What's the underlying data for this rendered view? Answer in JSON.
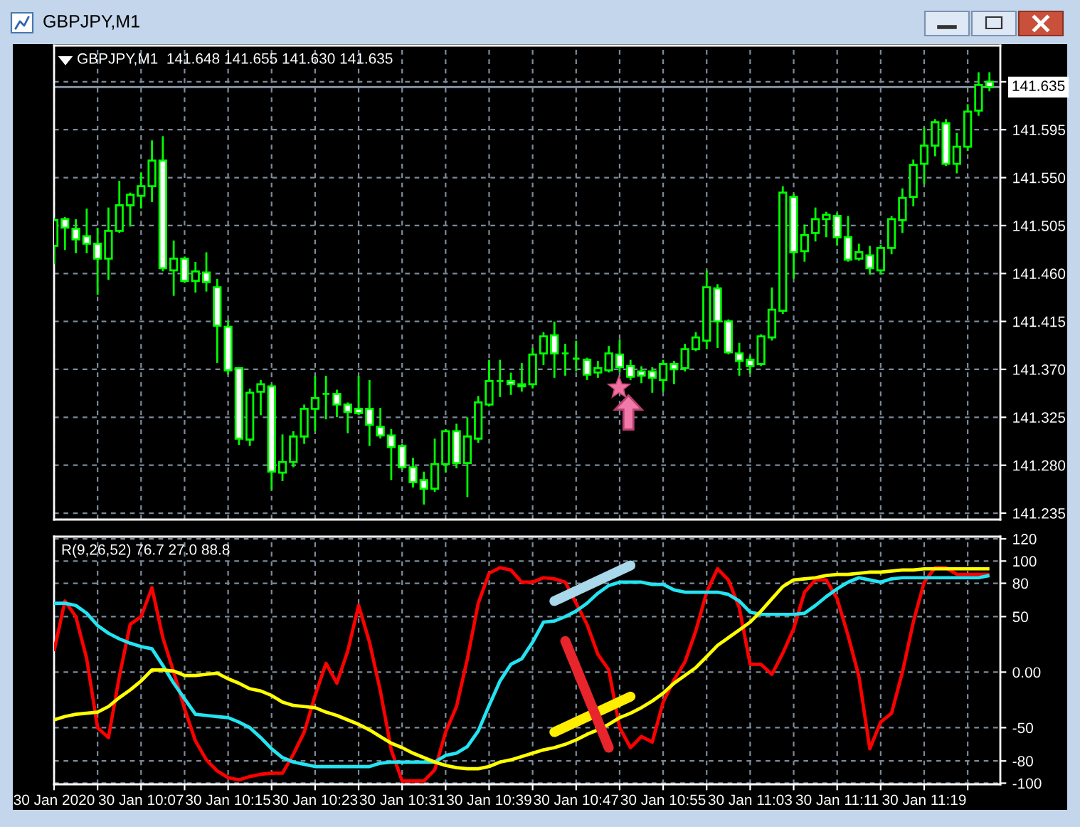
{
  "chart_data": [
    {
      "type": "candlestick",
      "title": "GBPJPY,M1",
      "subtitle": "GBPJPY,M1  141.648 141.655 141.630 141.635",
      "x": [
        "2020-01-30T09:59",
        "2020-01-30T10:00",
        "2020-01-30T10:01",
        "2020-01-30T10:02",
        "2020-01-30T10:03",
        "2020-01-30T10:04",
        "2020-01-30T10:05",
        "2020-01-30T10:06",
        "2020-01-30T10:07",
        "2020-01-30T10:08",
        "2020-01-30T10:09",
        "2020-01-30T10:10",
        "2020-01-30T10:11",
        "2020-01-30T10:12",
        "2020-01-30T10:13",
        "2020-01-30T10:14",
        "2020-01-30T10:15",
        "2020-01-30T10:16",
        "2020-01-30T10:17",
        "2020-01-30T10:18",
        "2020-01-30T10:19",
        "2020-01-30T10:20",
        "2020-01-30T10:21",
        "2020-01-30T10:22",
        "2020-01-30T10:23",
        "2020-01-30T10:24",
        "2020-01-30T10:25",
        "2020-01-30T10:26",
        "2020-01-30T10:27",
        "2020-01-30T10:28",
        "2020-01-30T10:29",
        "2020-01-30T10:30",
        "2020-01-30T10:31",
        "2020-01-30T10:32",
        "2020-01-30T10:33",
        "2020-01-30T10:34",
        "2020-01-30T10:35",
        "2020-01-30T10:36",
        "2020-01-30T10:37",
        "2020-01-30T10:38",
        "2020-01-30T10:39",
        "2020-01-30T10:40",
        "2020-01-30T10:41",
        "2020-01-30T10:42",
        "2020-01-30T10:43",
        "2020-01-30T10:44",
        "2020-01-30T10:45",
        "2020-01-30T10:46",
        "2020-01-30T10:47",
        "2020-01-30T10:48",
        "2020-01-30T10:49",
        "2020-01-30T10:50",
        "2020-01-30T10:51",
        "2020-01-30T10:52",
        "2020-01-30T10:53",
        "2020-01-30T10:54",
        "2020-01-30T10:55",
        "2020-01-30T10:56",
        "2020-01-30T10:57",
        "2020-01-30T10:58",
        "2020-01-30T10:59",
        "2020-01-30T11:00",
        "2020-01-30T11:01",
        "2020-01-30T11:02",
        "2020-01-30T11:03",
        "2020-01-30T11:04",
        "2020-01-30T11:05",
        "2020-01-30T11:06",
        "2020-01-30T11:07",
        "2020-01-30T11:08",
        "2020-01-30T11:09",
        "2020-01-30T11:10",
        "2020-01-30T11:11",
        "2020-01-30T11:12",
        "2020-01-30T11:13",
        "2020-01-30T11:14",
        "2020-01-30T11:15",
        "2020-01-30T11:16",
        "2020-01-30T11:17",
        "2020-01-30T11:18",
        "2020-01-30T11:19",
        "2020-01-30T11:20",
        "2020-01-30T11:21",
        "2020-01-30T11:22",
        "2020-01-30T11:23",
        "2020-01-30T11:24",
        "2020-01-30T11:25"
      ],
      "ohlc": [
        [
          141.486,
          141.511,
          141.47,
          141.51
        ],
        [
          141.511,
          141.512,
          141.483,
          141.503
        ],
        [
          141.502,
          141.51,
          141.48,
          141.492
        ],
        [
          141.495,
          141.52,
          141.48,
          141.488
        ],
        [
          141.488,
          141.502,
          141.441,
          141.474
        ],
        [
          141.474,
          141.521,
          141.455,
          141.5
        ],
        [
          141.5,
          141.546,
          141.499,
          141.524
        ],
        [
          141.524,
          141.535,
          141.505,
          141.534
        ],
        [
          141.533,
          141.554,
          141.522,
          141.542
        ],
        [
          141.542,
          141.584,
          141.528,
          141.566
        ],
        [
          141.566,
          141.588,
          141.463,
          141.465
        ],
        [
          141.463,
          141.49,
          141.44,
          141.474
        ],
        [
          141.474,
          141.475,
          141.452,
          141.453
        ],
        [
          141.453,
          141.47,
          141.443,
          141.462
        ],
        [
          141.461,
          141.479,
          141.444,
          141.452
        ],
        [
          141.447,
          141.454,
          141.377,
          141.411
        ],
        [
          141.41,
          141.415,
          141.366,
          141.369
        ],
        [
          141.371,
          141.371,
          141.3,
          141.305
        ],
        [
          141.304,
          141.351,
          141.299,
          141.348
        ],
        [
          141.349,
          141.359,
          141.328,
          141.356
        ],
        [
          141.354,
          141.355,
          141.258,
          141.274
        ],
        [
          141.273,
          141.308,
          141.266,
          141.283
        ],
        [
          141.283,
          141.311,
          141.279,
          141.307
        ],
        [
          141.307,
          141.336,
          141.301,
          141.333
        ],
        [
          141.333,
          141.363,
          141.313,
          141.343
        ],
        [
          141.347,
          141.363,
          141.324,
          141.347
        ],
        [
          141.347,
          141.35,
          141.326,
          141.337
        ],
        [
          141.337,
          141.338,
          141.311,
          141.33
        ],
        [
          141.333,
          141.363,
          141.328,
          141.329
        ],
        [
          141.333,
          141.359,
          141.299,
          141.318
        ],
        [
          141.316,
          141.333,
          141.306,
          141.308
        ],
        [
          141.308,
          141.313,
          141.267,
          141.297
        ],
        [
          141.298,
          141.299,
          141.277,
          141.278
        ],
        [
          141.278,
          141.286,
          141.26,
          141.264
        ],
        [
          141.266,
          141.273,
          141.244,
          141.258
        ],
        [
          141.258,
          141.304,
          141.256,
          141.281
        ],
        [
          141.281,
          141.313,
          141.274,
          141.312
        ],
        [
          141.312,
          141.318,
          141.278,
          141.282
        ],
        [
          141.282,
          141.324,
          141.251,
          141.307
        ],
        [
          141.305,
          141.344,
          141.302,
          141.339
        ],
        [
          141.337,
          141.378,
          141.336,
          141.359
        ],
        [
          141.359,
          141.378,
          141.345,
          141.359
        ],
        [
          141.359,
          141.366,
          141.347,
          141.356
        ],
        [
          141.356,
          141.375,
          141.35,
          141.354
        ],
        [
          141.356,
          141.389,
          141.353,
          141.384
        ],
        [
          141.385,
          141.404,
          141.375,
          141.401
        ],
        [
          141.402,
          141.414,
          141.363,
          141.385
        ],
        [
          141.385,
          141.393,
          141.365,
          141.385
        ],
        [
          141.38,
          141.396,
          141.369,
          141.38
        ],
        [
          141.379,
          141.38,
          141.361,
          141.365
        ],
        [
          141.367,
          141.377,
          141.363,
          141.371
        ],
        [
          141.369,
          141.391,
          141.368,
          141.385
        ],
        [
          141.384,
          141.397,
          141.368,
          141.372
        ],
        [
          141.373,
          141.378,
          141.361,
          141.363
        ],
        [
          141.368,
          141.372,
          141.358,
          141.364
        ],
        [
          141.368,
          141.371,
          141.349,
          141.362
        ],
        [
          141.36,
          141.378,
          141.35,
          141.375
        ],
        [
          141.375,
          141.377,
          141.357,
          141.37
        ],
        [
          141.371,
          141.393,
          141.369,
          141.389
        ],
        [
          141.389,
          141.404,
          141.388,
          141.4
        ],
        [
          141.397,
          141.462,
          141.39,
          141.447
        ],
        [
          141.446,
          141.449,
          141.391,
          141.415
        ],
        [
          141.415,
          141.416,
          141.385,
          141.386
        ],
        [
          141.385,
          141.394,
          141.365,
          141.378
        ],
        [
          141.379,
          141.382,
          141.367,
          141.373
        ],
        [
          141.375,
          141.402,
          141.374,
          141.401
        ],
        [
          141.4,
          141.446,
          141.398,
          141.426
        ],
        [
          141.425,
          141.541,
          141.423,
          141.536
        ],
        [
          141.532,
          141.534,
          141.456,
          141.48
        ],
        [
          141.481,
          141.505,
          141.472,
          141.496
        ],
        [
          141.498,
          141.521,
          141.491,
          141.511
        ],
        [
          141.511,
          141.517,
          141.495,
          141.515
        ],
        [
          141.514,
          141.516,
          141.487,
          141.494
        ],
        [
          141.494,
          141.513,
          141.472,
          141.473
        ],
        [
          141.474,
          141.487,
          141.473,
          141.48
        ],
        [
          141.477,
          141.485,
          141.46,
          141.465
        ],
        [
          141.463,
          141.486,
          141.46,
          141.484
        ],
        [
          141.484,
          141.513,
          141.479,
          141.511
        ],
        [
          141.51,
          141.539,
          141.499,
          141.531
        ],
        [
          141.532,
          141.566,
          141.524,
          141.562
        ],
        [
          141.563,
          141.596,
          141.545,
          141.58
        ],
        [
          141.58,
          141.604,
          141.571,
          141.602
        ],
        [
          141.601,
          141.604,
          141.562,
          141.563
        ],
        [
          141.563,
          141.591,
          141.555,
          141.579
        ],
        [
          141.579,
          141.618,
          141.576,
          141.612
        ],
        [
          141.613,
          141.648,
          141.609,
          141.637
        ],
        [
          141.64,
          141.648,
          141.632,
          141.635
        ]
      ],
      "color": "#00ff00",
      "colors": [
        "#000000",
        "#ffffff",
        "#ffffff",
        "#ffffff",
        "#ffffff",
        "#000000",
        "#000000",
        "#000000",
        "#000000",
        "#000000",
        "#ffffff",
        "#000000",
        "#ffffff",
        "#000000",
        "#ffffff",
        "#ffffff",
        "#ffffff",
        "#ffffff",
        "#000000",
        "#000000",
        "#ffffff",
        "#000000",
        "#000000",
        "#000000",
        "#000000",
        "#00ff00",
        "#ffffff",
        "#ffffff",
        "#ffffff",
        "#ffffff",
        "#ffffff",
        "#ffffff",
        "#ffffff",
        "#ffffff",
        "#ffffff",
        "#000000",
        "#000000",
        "#ffffff",
        "#000000",
        "#000000",
        "#000000",
        "#00ff00",
        "#ffffff",
        "#ffffff",
        "#000000",
        "#000000",
        "#ffffff",
        "#00ff00",
        "#00ff00",
        "#ffffff",
        "#000000",
        "#000000",
        "#ffffff",
        "#ffffff",
        "#ffffff",
        "#ffffff",
        "#000000",
        "#ffffff",
        "#000000",
        "#000000",
        "#000000",
        "#ffffff",
        "#ffffff",
        "#ffffff",
        "#ffffff",
        "#000000",
        "#000000",
        "#000000",
        "#ffffff",
        "#000000",
        "#000000",
        "#000000",
        "#ffffff",
        "#ffffff",
        "#000000",
        "#ffffff",
        "#000000",
        "#000000",
        "#000000",
        "#000000",
        "#000000",
        "#000000",
        "#ffffff",
        "#000000",
        "#000000",
        "#000000",
        "#ffffff"
      ],
      "xlim": [
        "2020-01-30T09:59",
        "2020-01-30T11:26"
      ],
      "xticks": [
        {
          "value": "2020-01-30T09:59",
          "label": null
        },
        {
          "value": "2020-01-30T10:03",
          "label": null
        },
        {
          "value": "2020-01-30T10:07",
          "label": null
        },
        {
          "value": "2020-01-30T10:11",
          "label": null
        },
        {
          "value": "2020-01-30T10:15",
          "label": null
        },
        {
          "value": "2020-01-30T10:19",
          "label": null
        },
        {
          "value": "2020-01-30T10:23",
          "label": null
        },
        {
          "value": "2020-01-30T10:27",
          "label": null
        },
        {
          "value": "2020-01-30T10:31",
          "label": null
        },
        {
          "value": "2020-01-30T10:35",
          "label": null
        },
        {
          "value": "2020-01-30T10:39",
          "label": null
        },
        {
          "value": "2020-01-30T10:43",
          "label": null
        },
        {
          "value": "2020-01-30T10:47",
          "label": null
        },
        {
          "value": "2020-01-30T10:51",
          "label": null
        },
        {
          "value": "2020-01-30T10:55",
          "label": null
        },
        {
          "value": "2020-01-30T10:59",
          "label": null
        },
        {
          "value": "2020-01-30T11:03",
          "label": null
        },
        {
          "value": "2020-01-30T11:07",
          "label": null
        },
        {
          "value": "2020-01-30T11:11",
          "label": null
        },
        {
          "value": "2020-01-30T11:15",
          "label": null
        },
        {
          "value": "2020-01-30T11:19",
          "label": null
        },
        {
          "value": "2020-01-30T11:23",
          "label": null
        }
      ],
      "ylim": [
        141.229,
        141.674
      ],
      "yticks": [
        141.235,
        {
          "value": 141.28,
          "label": "141.280"
        },
        141.325,
        {
          "value": 141.37,
          "label": "141.370"
        },
        141.415,
        {
          "value": 141.46,
          "label": "141.460"
        },
        141.505,
        {
          "value": 141.55,
          "label": "141.550"
        },
        141.595,
        {
          "value": 141.64,
          "label": null
        }
      ],
      "tick_labels": "y",
      "grid": true,
      "ref_lines": [
        {
          "axis": "y",
          "value": 141.635,
          "label": "141.635",
          "color": "#8796a8"
        }
      ]
    },
    {
      "type": "line",
      "title": "R(9,26,52) 76.7 27.0 88.8",
      "x": [
        "2020-01-30T09:59",
        "2020-01-30T10:00",
        "2020-01-30T10:01",
        "2020-01-30T10:02",
        "2020-01-30T10:03",
        "2020-01-30T10:04",
        "2020-01-30T10:05",
        "2020-01-30T10:06",
        "2020-01-30T10:07",
        "2020-01-30T10:08",
        "2020-01-30T10:09",
        "2020-01-30T10:10",
        "2020-01-30T10:11",
        "2020-01-30T10:12",
        "2020-01-30T10:13",
        "2020-01-30T10:14",
        "2020-01-30T10:15",
        "2020-01-30T10:16",
        "2020-01-30T10:17",
        "2020-01-30T10:18",
        "2020-01-30T10:19",
        "2020-01-30T10:20",
        "2020-01-30T10:21",
        "2020-01-30T10:22",
        "2020-01-30T10:23",
        "2020-01-30T10:24",
        "2020-01-30T10:25",
        "2020-01-30T10:26",
        "2020-01-30T10:27",
        "2020-01-30T10:28",
        "2020-01-30T10:29",
        "2020-01-30T10:30",
        "2020-01-30T10:31",
        "2020-01-30T10:32",
        "2020-01-30T10:33",
        "2020-01-30T10:34",
        "2020-01-30T10:35",
        "2020-01-30T10:36",
        "2020-01-30T10:37",
        "2020-01-30T10:38",
        "2020-01-30T10:39",
        "2020-01-30T10:40",
        "2020-01-30T10:41",
        "2020-01-30T10:42",
        "2020-01-30T10:43",
        "2020-01-30T10:44",
        "2020-01-30T10:45",
        "2020-01-30T10:46",
        "2020-01-30T10:47",
        "2020-01-30T10:48",
        "2020-01-30T10:49",
        "2020-01-30T10:50",
        "2020-01-30T10:51",
        "2020-01-30T10:52",
        "2020-01-30T10:53",
        "2020-01-30T10:54",
        "2020-01-30T10:55",
        "2020-01-30T10:56",
        "2020-01-30T10:57",
        "2020-01-30T10:58",
        "2020-01-30T10:59",
        "2020-01-30T11:00",
        "2020-01-30T11:01",
        "2020-01-30T11:02",
        "2020-01-30T11:03",
        "2020-01-30T11:04",
        "2020-01-30T11:05",
        "2020-01-30T11:06",
        "2020-01-30T11:07",
        "2020-01-30T11:08",
        "2020-01-30T11:09",
        "2020-01-30T11:10",
        "2020-01-30T11:11",
        "2020-01-30T11:12",
        "2020-01-30T11:13",
        "2020-01-30T11:14",
        "2020-01-30T11:15",
        "2020-01-30T11:16",
        "2020-01-30T11:17",
        "2020-01-30T11:18",
        "2020-01-30T11:19",
        "2020-01-30T11:20",
        "2020-01-30T11:21",
        "2020-01-30T11:22",
        "2020-01-30T11:23",
        "2020-01-30T11:24",
        "2020-01-30T11:25"
      ],
      "series": [
        {
          "color": "#ff0000",
          "values": [
            19,
            64,
            50,
            12,
            -50,
            -59,
            -4,
            43,
            50,
            76,
            31,
            0,
            -33,
            -62,
            -79,
            -89,
            -95,
            -97,
            -94,
            -92,
            -91,
            -91,
            -74,
            -54,
            -21,
            8,
            -10,
            19,
            60,
            27,
            -17,
            -70,
            -98,
            -98,
            -98,
            -88,
            -54,
            -31,
            12,
            62,
            89,
            94,
            92,
            81,
            81,
            85,
            84,
            81,
            62,
            43,
            16,
            2,
            -50,
            -68,
            -58,
            -63,
            -27,
            -7,
            9,
            37,
            72,
            93,
            83,
            58,
            7,
            7,
            -2,
            17,
            39,
            72,
            83,
            83,
            66,
            33,
            -4,
            -69,
            -45,
            -37,
            0,
            45,
            81,
            94,
            94,
            88,
            88,
            88,
            88
          ]
        },
        {
          "color": "#22e4f2",
          "values": [
            62,
            62,
            60,
            53,
            42,
            35,
            30,
            26,
            23,
            21,
            6,
            -10,
            -24,
            -38,
            -39,
            -40,
            -41,
            -45,
            -50,
            -59,
            -69,
            -77,
            -81,
            -83,
            -85,
            -85,
            -85,
            -85,
            -85,
            -85,
            -82,
            -81,
            -81,
            -81,
            -81,
            -81,
            -75,
            -73,
            -67,
            -53,
            -30,
            -8,
            7,
            12,
            27,
            45,
            46,
            50,
            55,
            62,
            71,
            78,
            81,
            81,
            81,
            79,
            79,
            74,
            72,
            72,
            72,
            72,
            70,
            64,
            54,
            52,
            52,
            52,
            52,
            53,
            60,
            68,
            75,
            81,
            85,
            83,
            81,
            84,
            85,
            85,
            85,
            85,
            85,
            85,
            85,
            85,
            87
          ]
        },
        {
          "color": "#ffff00",
          "values": [
            -43,
            -40,
            -38,
            -37,
            -36,
            -31,
            -23,
            -16,
            -8,
            2,
            2,
            1,
            -3,
            -3,
            -2,
            -1,
            -6,
            -10,
            -15,
            -17,
            -21,
            -27,
            -30,
            -31,
            -32,
            -36,
            -39,
            -43,
            -47,
            -52,
            -58,
            -64,
            -68,
            -73,
            -77,
            -81,
            -84,
            -86,
            -87,
            -87,
            -85,
            -81,
            -79,
            -76,
            -73,
            -70,
            -68,
            -65,
            -61,
            -56,
            -52,
            -47,
            -41,
            -37,
            -32,
            -26,
            -19,
            -10,
            -3,
            4,
            14,
            24,
            31,
            38,
            45,
            55,
            66,
            77,
            83,
            84,
            85,
            87,
            88,
            88,
            89,
            90,
            90,
            91,
            92,
            92,
            93,
            93,
            93,
            93,
            93,
            93,
            93
          ]
        },
        {
          "color": "#a8d8ea",
          "x": [
            "2020-01-30T10:45",
            "2020-01-30T10:52"
          ],
          "values": [
            64,
            96
          ]
        },
        {
          "color": "#ffee00",
          "x": [
            "2020-01-30T10:45",
            "2020-01-30T10:52"
          ],
          "values": [
            -54,
            -22
          ]
        },
        {
          "color": "#e8242c",
          "x": [
            "2020-01-30T10:46",
            "2020-01-30T10:50"
          ],
          "values": [
            28,
            -68
          ]
        }
      ],
      "xlim": [
        "2020-01-30T09:59",
        "2020-01-30T11:26"
      ],
      "xticks": [
        {
          "value": "2020-01-30T09:59",
          "label": "30 Jan 2020"
        },
        {
          "value": "2020-01-30T10:03",
          "label": null
        },
        {
          "value": "2020-01-30T10:07",
          "label": "30 Jan 10:07"
        },
        {
          "value": "2020-01-30T10:11",
          "label": null
        },
        {
          "value": "2020-01-30T10:15",
          "label": "30 Jan 10:15"
        },
        {
          "value": "2020-01-30T10:19",
          "label": null
        },
        {
          "value": "2020-01-30T10:23",
          "label": "30 Jan 10:23"
        },
        {
          "value": "2020-01-30T10:27",
          "label": null
        },
        {
          "value": "2020-01-30T10:31",
          "label": "30 Jan 10:31"
        },
        {
          "value": "2020-01-30T10:35",
          "label": null
        },
        {
          "value": "2020-01-30T10:39",
          "label": "30 Jan 10:39"
        },
        {
          "value": "2020-01-30T10:43",
          "label": null
        },
        {
          "value": "2020-01-30T10:47",
          "label": "30 Jan 10:47"
        },
        {
          "value": "2020-01-30T10:51",
          "label": null
        },
        {
          "value": "2020-01-30T10:55",
          "label": "30 Jan 10:55"
        },
        {
          "value": "2020-01-30T10:59",
          "label": null
        },
        {
          "value": "2020-01-30T11:03",
          "label": "30 Jan 11:03"
        },
        {
          "value": "2020-01-30T11:07",
          "label": null
        },
        {
          "value": "2020-01-30T11:11",
          "label": "30 Jan 11:11"
        },
        {
          "value": "2020-01-30T11:15",
          "label": null
        },
        {
          "value": "2020-01-30T11:19",
          "label": "30 Jan 11:19"
        },
        {
          "value": "2020-01-30T11:23",
          "label": null
        }
      ],
      "ylim": [
        -101,
        122
      ],
      "yticks": [
        120,
        100,
        80,
        50,
        {
          "value": 0,
          "label": "0.00"
        },
        -50,
        -80,
        -100
      ],
      "grid": true
    }
  ]
}
